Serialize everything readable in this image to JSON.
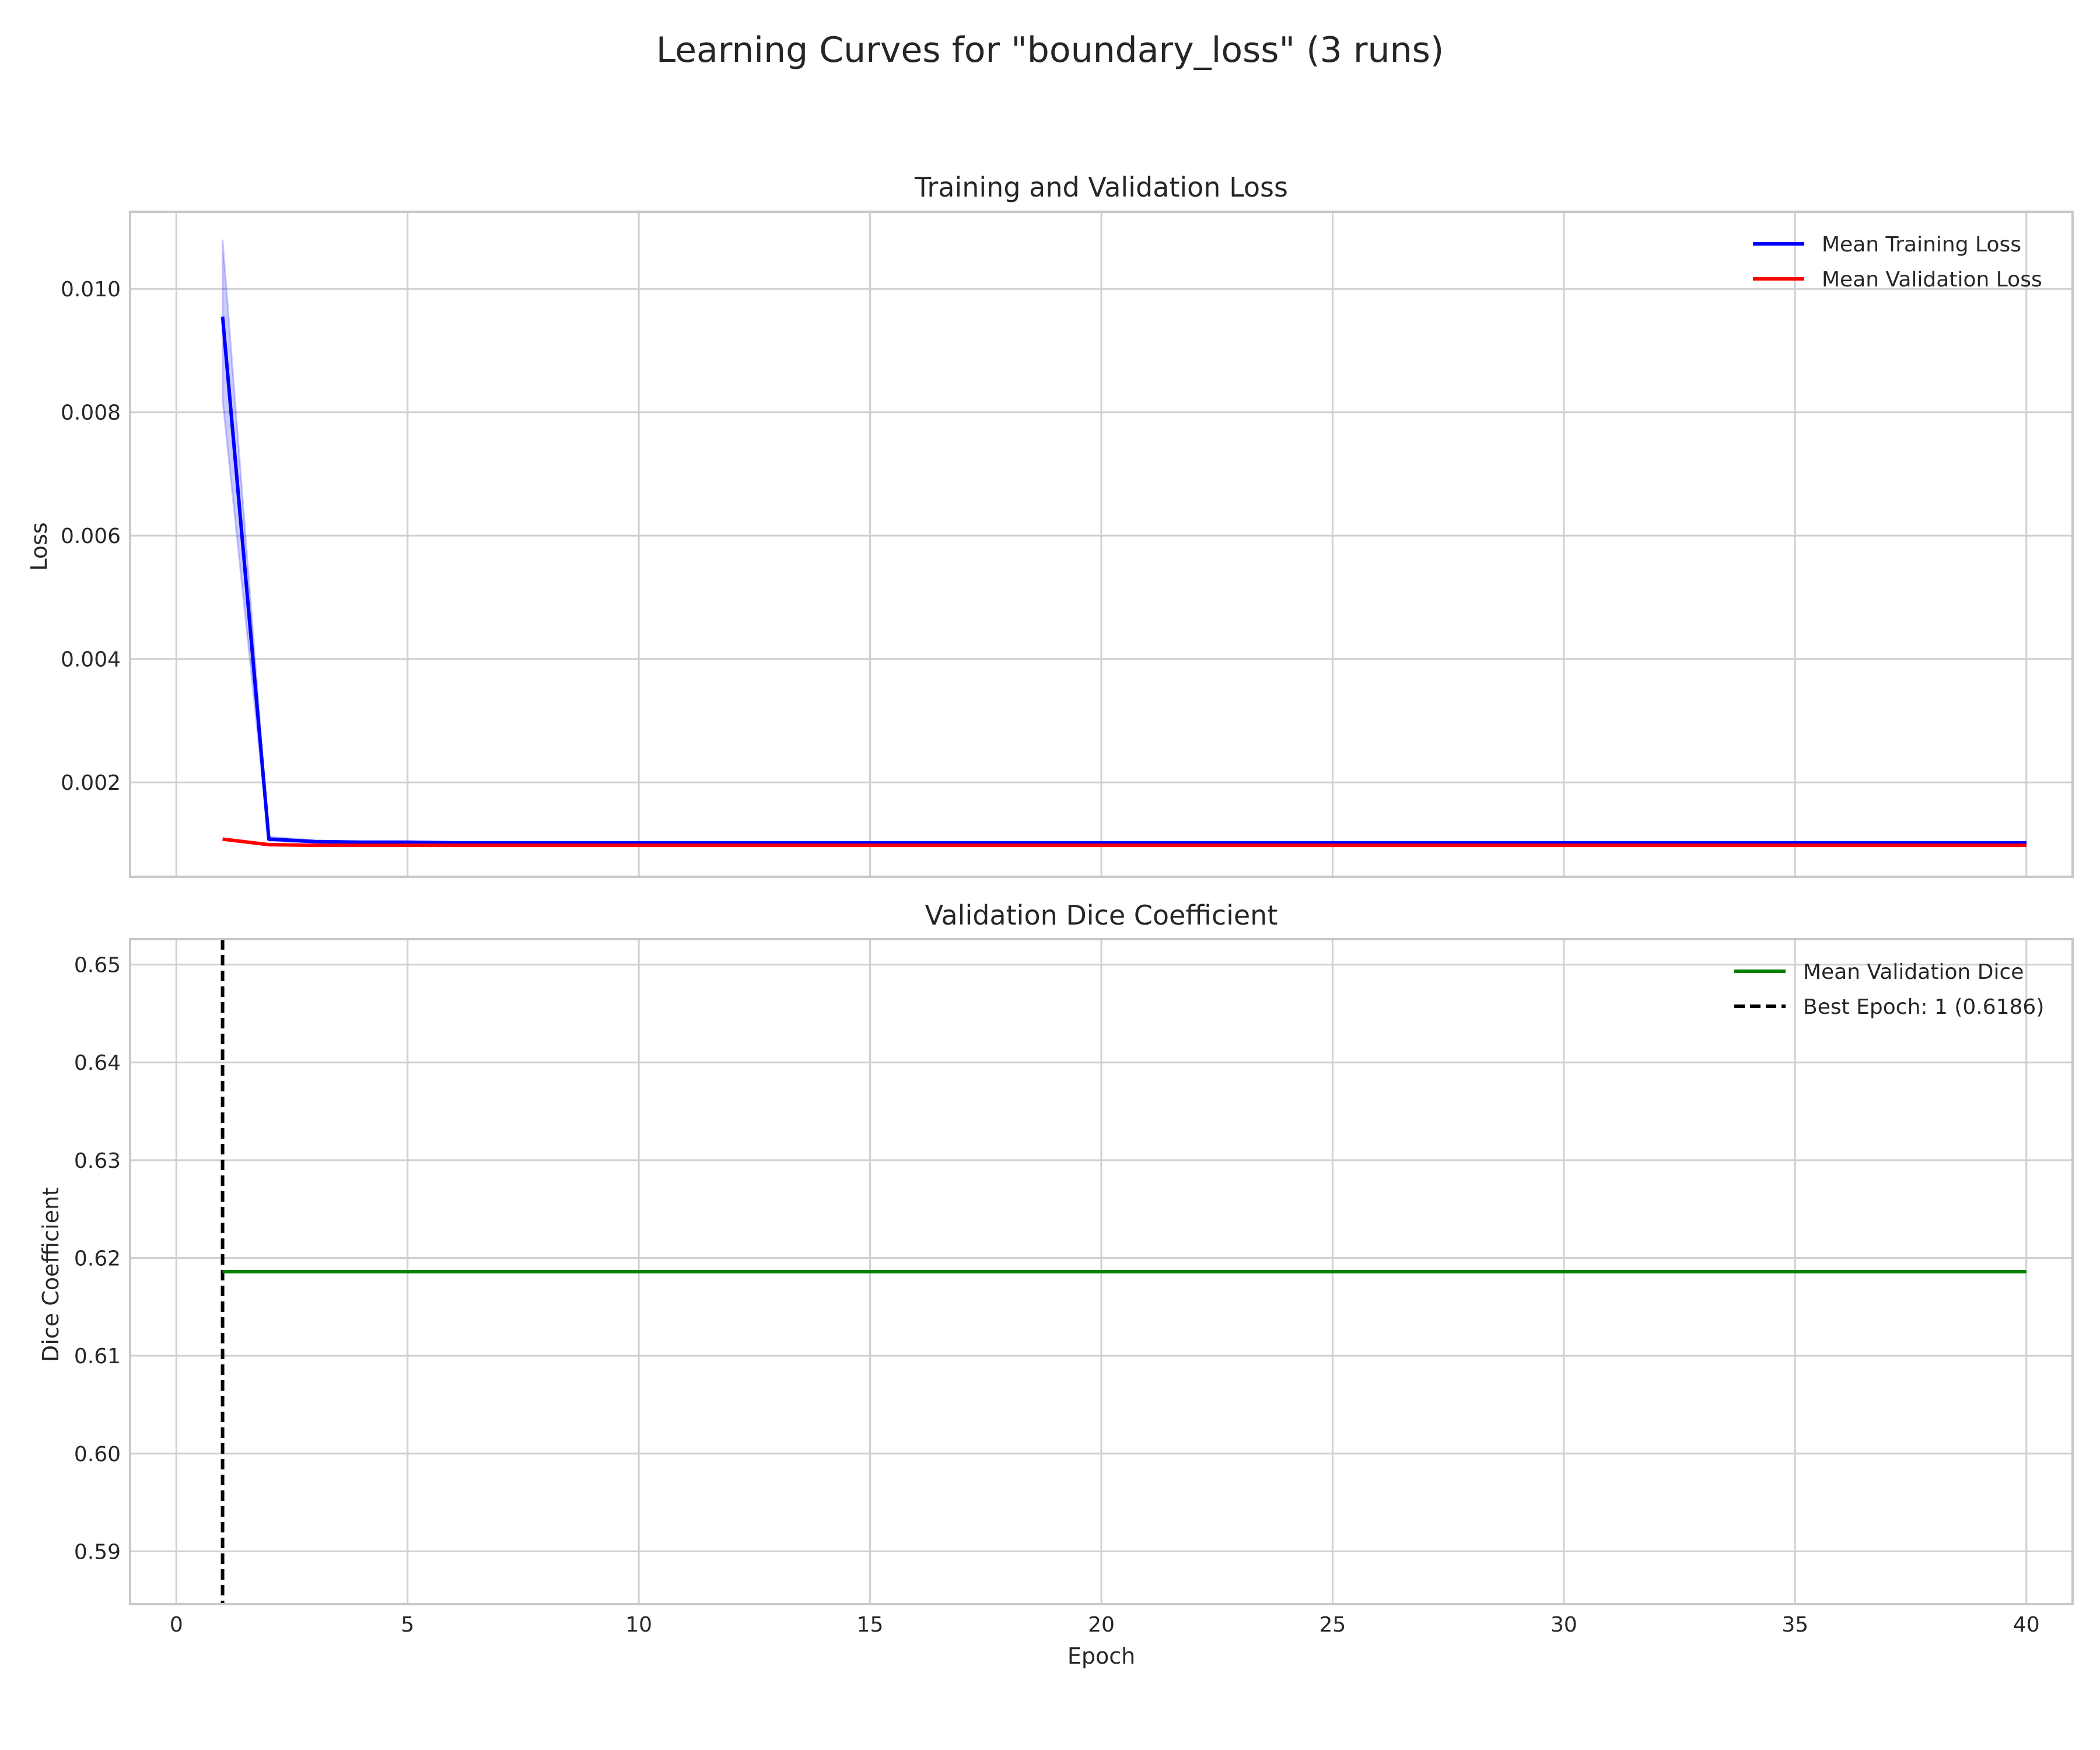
{
  "figure": {
    "title": "Learning Curves for \"boundary_loss\" (3 runs)"
  },
  "chart_data": [
    {
      "type": "line",
      "title": "Training and Validation Loss",
      "xlabel": "",
      "ylabel": "Loss",
      "xlim": [
        -1,
        41
      ],
      "ylim": [
        0.00047,
        0.01125
      ],
      "xticks": [
        0,
        5,
        10,
        15,
        20,
        25,
        30,
        35,
        40
      ],
      "yticks": [
        0.002,
        0.004,
        0.006,
        0.008,
        0.01
      ],
      "ytick_labels": [
        "0.002",
        "0.004",
        "0.006",
        "0.008",
        "0.010"
      ],
      "grid": true,
      "legend_position": "upper right",
      "x": [
        1,
        2,
        3,
        4,
        5,
        6,
        7,
        8,
        9,
        10,
        11,
        12,
        13,
        14,
        15,
        16,
        17,
        18,
        19,
        20,
        21,
        22,
        23,
        24,
        25,
        26,
        27,
        28,
        29,
        30,
        31,
        32,
        33,
        34,
        35,
        36,
        37,
        38,
        39,
        40
      ],
      "series": [
        {
          "name": "Mean Training Loss",
          "color": "#0000ff",
          "values": [
            0.00955,
            0.00108,
            0.00104,
            0.00103,
            0.00103,
            0.00102,
            0.00102,
            0.00102,
            0.00102,
            0.00102,
            0.00102,
            0.00102,
            0.00102,
            0.00102,
            0.00102,
            0.00102,
            0.00102,
            0.00102,
            0.00102,
            0.00102,
            0.00102,
            0.00102,
            0.00102,
            0.00102,
            0.00102,
            0.00102,
            0.00102,
            0.00102,
            0.00102,
            0.00102,
            0.00102,
            0.00102,
            0.00102,
            0.00102,
            0.00102,
            0.00102,
            0.00102,
            0.00102,
            0.00102,
            0.00102
          ],
          "band_upper": [
            0.0108,
            0.00112,
            0.00106,
            0.00104,
            0.00104,
            0.00103,
            0.00103,
            0.00103,
            0.00103,
            0.00103,
            0.00103,
            0.00103,
            0.00103,
            0.00103,
            0.00103,
            0.00103,
            0.00103,
            0.00103,
            0.00103,
            0.00103,
            0.00103,
            0.00103,
            0.00103,
            0.00103,
            0.00103,
            0.00103,
            0.00103,
            0.00103,
            0.00103,
            0.00103,
            0.00103,
            0.00103,
            0.00103,
            0.00103,
            0.00103,
            0.00103,
            0.00103,
            0.00103,
            0.00103,
            0.00103
          ],
          "band_lower": [
            0.0082,
            0.00105,
            0.00102,
            0.00102,
            0.00101,
            0.00101,
            0.00101,
            0.00101,
            0.00101,
            0.00101,
            0.00101,
            0.00101,
            0.00101,
            0.00101,
            0.00101,
            0.00101,
            0.00101,
            0.00101,
            0.00101,
            0.00101,
            0.00101,
            0.00101,
            0.00101,
            0.00101,
            0.00101,
            0.00101,
            0.00101,
            0.00101,
            0.00101,
            0.00101,
            0.00101,
            0.00101,
            0.00101,
            0.00101,
            0.00101,
            0.00101,
            0.00101,
            0.00101,
            0.00101,
            0.00101
          ]
        },
        {
          "name": "Mean Validation Loss",
          "color": "#ff0000",
          "values": [
            0.00108,
            0.00099,
            0.00098,
            0.00098,
            0.00098,
            0.00098,
            0.00098,
            0.00098,
            0.00098,
            0.00098,
            0.00098,
            0.00098,
            0.00098,
            0.00098,
            0.00098,
            0.00098,
            0.00098,
            0.00098,
            0.00098,
            0.00098,
            0.00098,
            0.00098,
            0.00098,
            0.00098,
            0.00098,
            0.00098,
            0.00098,
            0.00098,
            0.00098,
            0.00098,
            0.00098,
            0.00098,
            0.00098,
            0.00098,
            0.00098,
            0.00098,
            0.00098,
            0.00098,
            0.00098,
            0.00098
          ]
        }
      ]
    },
    {
      "type": "line",
      "title": "Validation Dice Coefficient",
      "xlabel": "Epoch",
      "ylabel": "Dice Coefficient",
      "xlim": [
        -1,
        41
      ],
      "ylim": [
        0.5846,
        0.6526
      ],
      "xticks": [
        0,
        5,
        10,
        15,
        20,
        25,
        30,
        35,
        40
      ],
      "yticks": [
        0.59,
        0.6,
        0.61,
        0.62,
        0.63,
        0.64,
        0.65
      ],
      "ytick_labels": [
        "0.59",
        "0.60",
        "0.61",
        "0.62",
        "0.63",
        "0.64",
        "0.65"
      ],
      "grid": true,
      "legend_position": "upper right",
      "x": [
        1,
        40
      ],
      "series": [
        {
          "name": "Mean Validation Dice",
          "color": "#008000",
          "values": [
            0.6186,
            0.6186
          ]
        }
      ],
      "vline": {
        "name": "Best Epoch: 1 (0.6186)",
        "x": 1,
        "color": "#000000",
        "style": "dashed"
      }
    }
  ]
}
